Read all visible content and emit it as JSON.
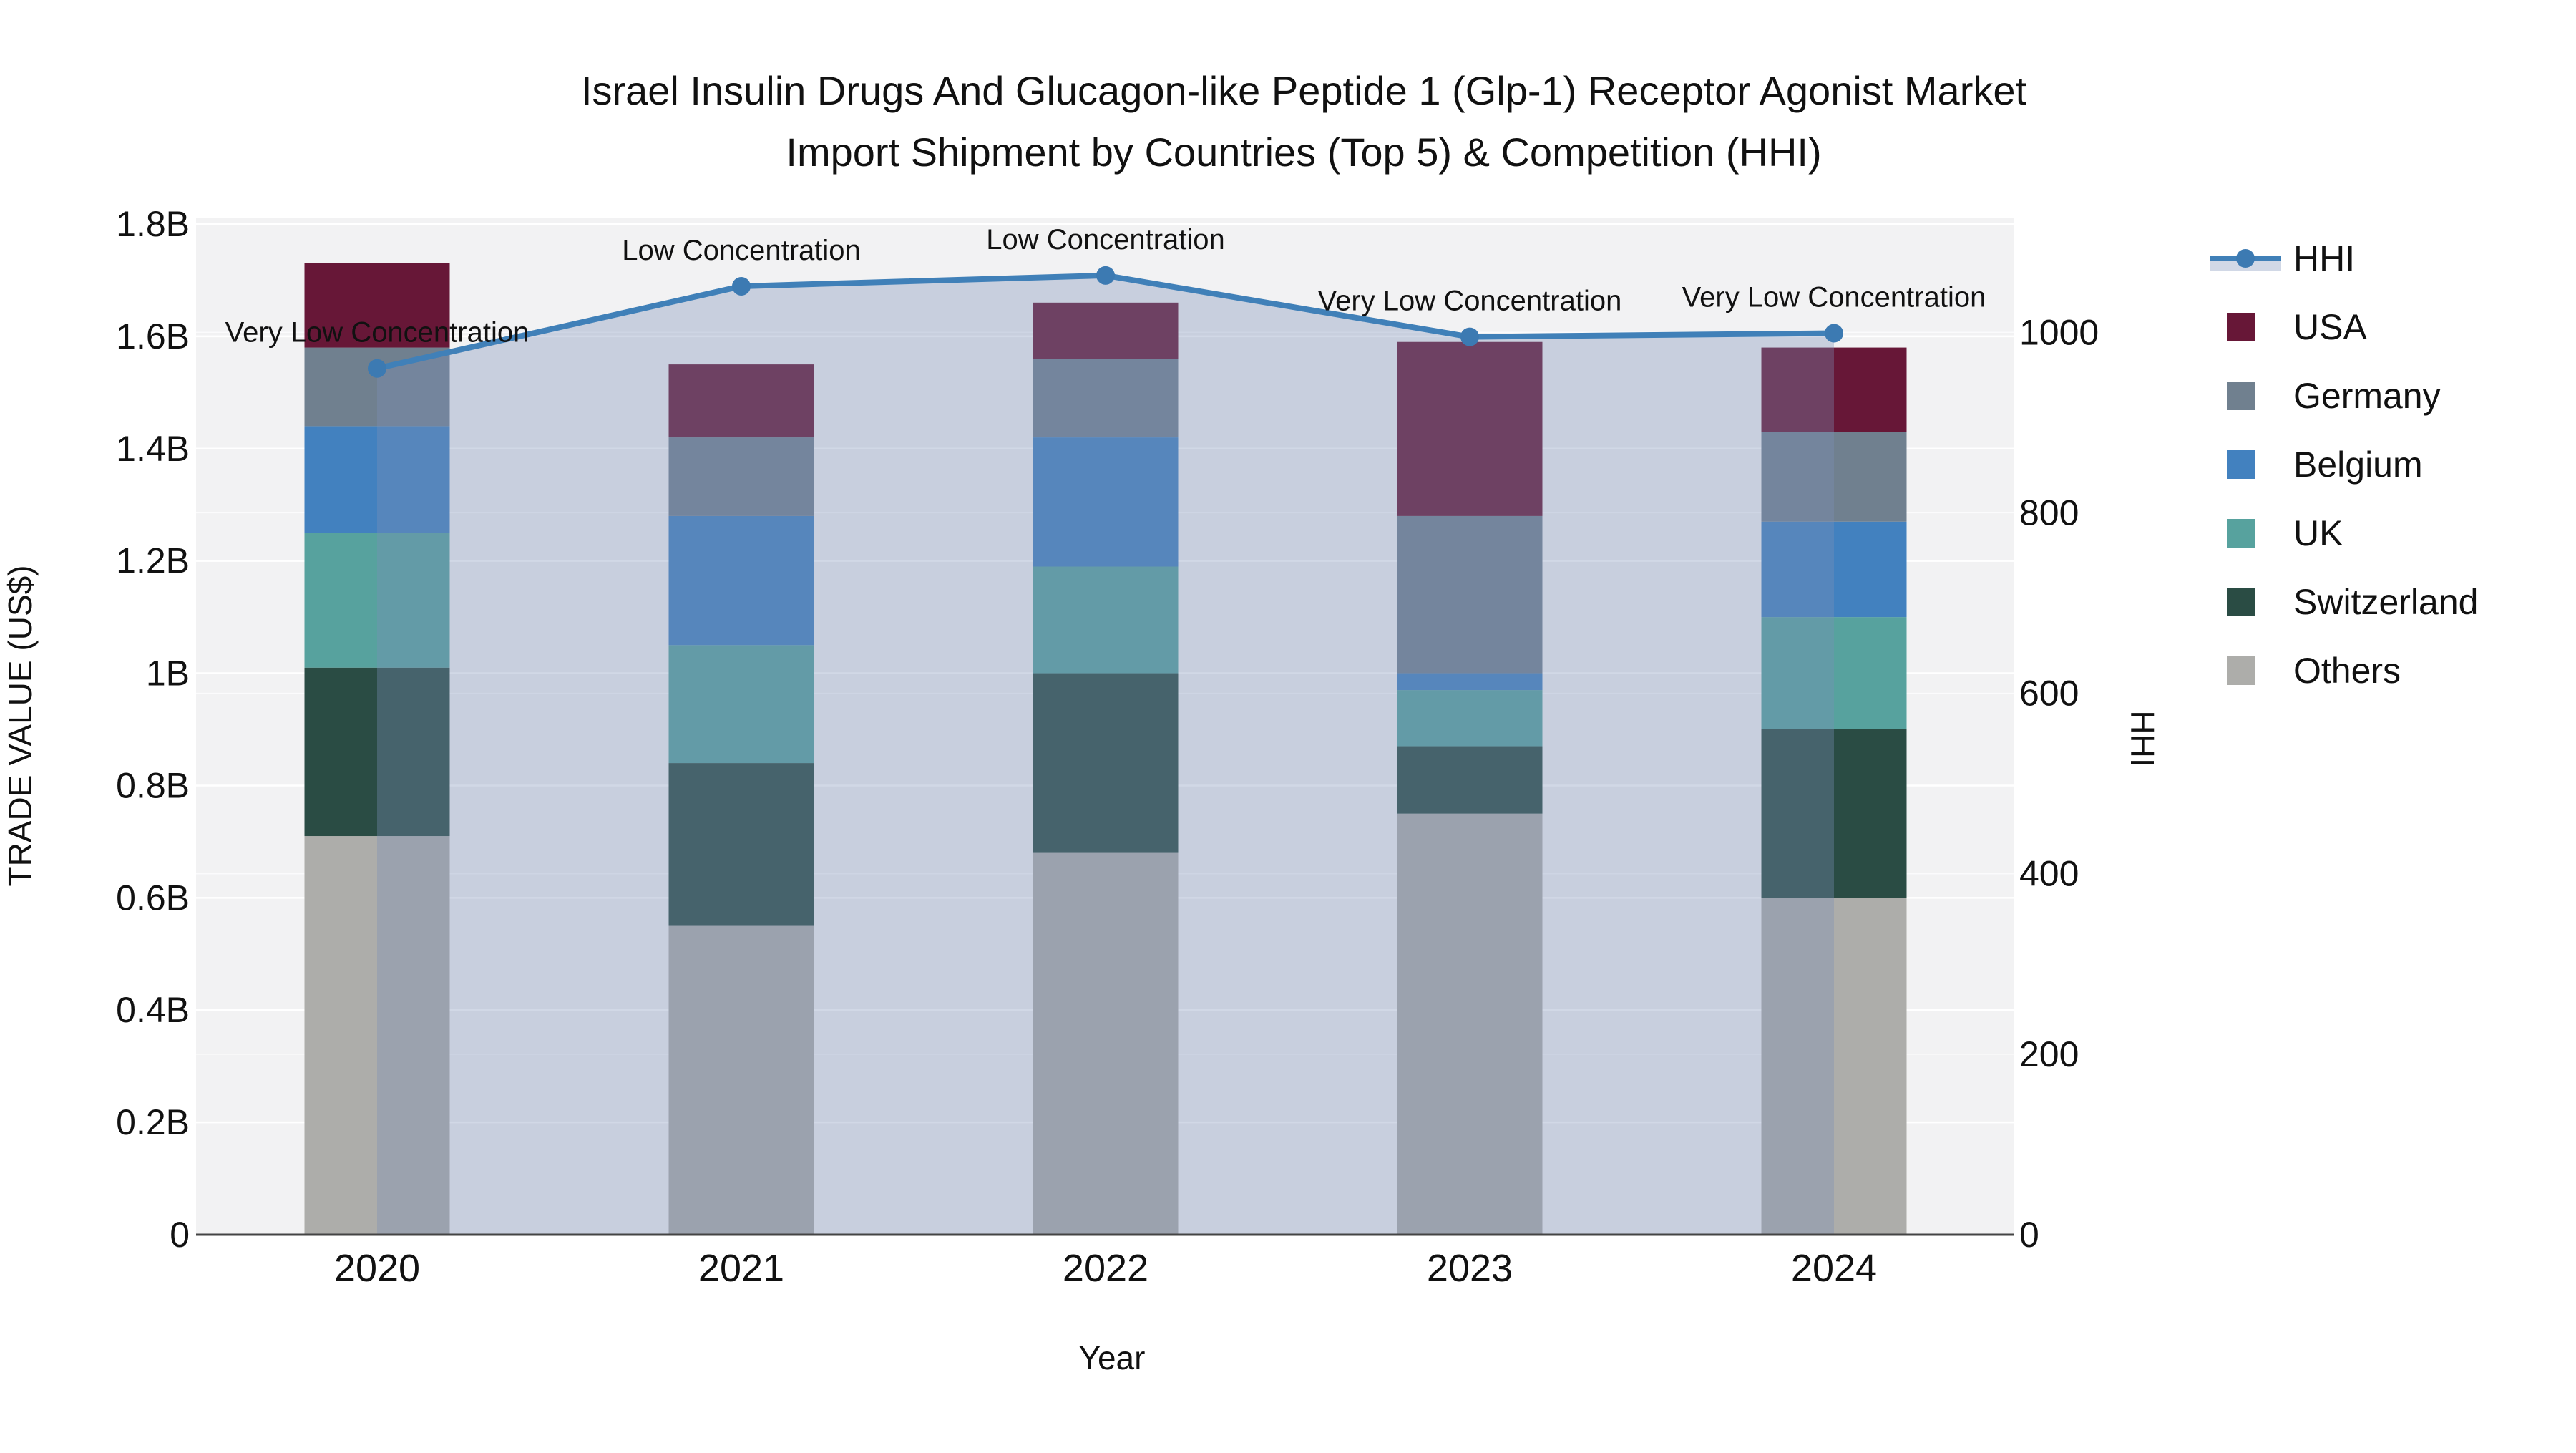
{
  "chart_data": {
    "type": "bar",
    "subtype": "stacked-bars-with-line-and-area",
    "title": "Israel Insulin Drugs And Glucagon-like Peptide 1 (Glp-1) Receptor Agonist Market Import Shipment by Countries (Top 5) & Competition (HHI)",
    "title_lines": [
      "Israel Insulin Drugs And Glucagon-like Peptide 1 (Glp-1) Receptor Agonist Market",
      "Import Shipment by Countries (Top 5) & Competition (HHI)"
    ],
    "xlabel": "Year",
    "ylabel_left": "TRADE VALUE (US$)",
    "ylabel_right": "HHI",
    "categories": [
      "2020",
      "2021",
      "2022",
      "2023",
      "2024"
    ],
    "values_unit": "billion US$",
    "series": [
      {
        "name": "Others",
        "color": "#adadaa",
        "values": [
          0.71,
          0.55,
          0.68,
          0.75,
          0.6
        ]
      },
      {
        "name": "Switzerland",
        "color": "#2a4c44",
        "values": [
          0.3,
          0.29,
          0.32,
          0.12,
          0.3
        ]
      },
      {
        "name": "UK",
        "color": "#57a29e",
        "values": [
          0.24,
          0.21,
          0.19,
          0.1,
          0.2
        ]
      },
      {
        "name": "Belgium",
        "color": "#4281bf",
        "values": [
          0.19,
          0.23,
          0.23,
          0.03,
          0.17
        ]
      },
      {
        "name": "Germany",
        "color": "#70808f",
        "values": [
          0.14,
          0.14,
          0.14,
          0.28,
          0.16
        ]
      },
      {
        "name": "USA",
        "color": "#671737",
        "values": [
          0.15,
          0.13,
          0.1,
          0.31,
          0.15
        ]
      }
    ],
    "hhi": {
      "name": "HHI",
      "line_color": "#4080b8",
      "marker_color": "#3c7ab2",
      "fill_color": "rgba(122,143,183,0.35)",
      "values": [
        960,
        1051,
        1063,
        995,
        999
      ],
      "annotations": [
        "Very Low Concentration",
        "Low Concentration",
        "Low Concentration",
        "Very Low Concentration",
        "Very Low Concentration"
      ]
    },
    "yticks_left": [
      {
        "value": 0,
        "label": "0"
      },
      {
        "value": 0.2,
        "label": "0.2B"
      },
      {
        "value": 0.4,
        "label": "0.4B"
      },
      {
        "value": 0.6,
        "label": "0.6B"
      },
      {
        "value": 0.8,
        "label": "0.8B"
      },
      {
        "value": 1,
        "label": "1B"
      },
      {
        "value": 1.2,
        "label": "1.2B"
      },
      {
        "value": 1.4,
        "label": "1.4B"
      },
      {
        "value": 1.6,
        "label": "1.6B"
      },
      {
        "value": 1.8,
        "label": "1.8B"
      }
    ],
    "yticks_right": [
      {
        "value": 0,
        "label": "0"
      },
      {
        "value": 200,
        "label": "200"
      },
      {
        "value": 400,
        "label": "400"
      },
      {
        "value": 600,
        "label": "600"
      },
      {
        "value": 800,
        "label": "800"
      },
      {
        "value": 1000,
        "label": "1000"
      }
    ],
    "ylim_left": [
      0,
      1.8
    ],
    "ylim_right": [
      0,
      1120
    ],
    "grid": true,
    "plot_bg_color": "#f2f2f3",
    "legend": {
      "position": "right",
      "items": [
        "HHI",
        "USA",
        "Germany",
        "Belgium",
        "UK",
        "Switzerland",
        "Others"
      ]
    }
  }
}
